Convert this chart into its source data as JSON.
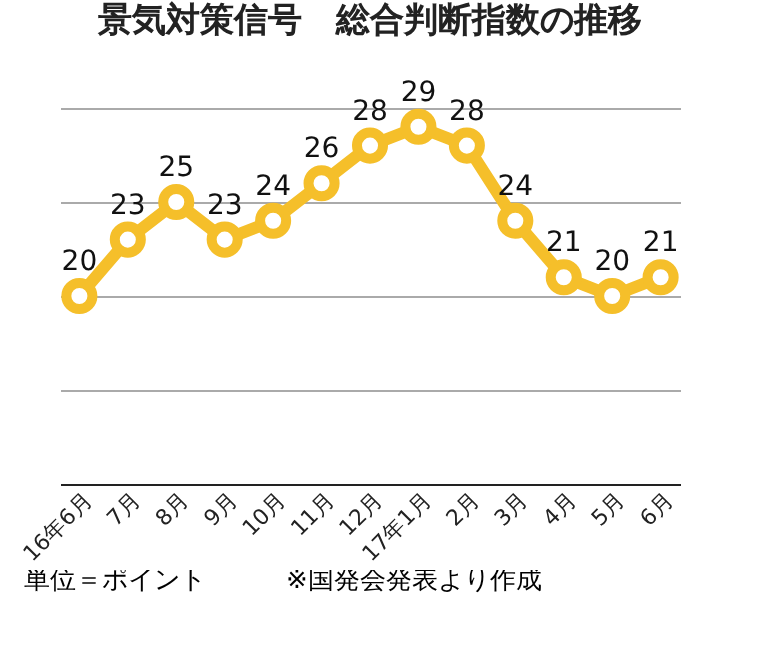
{
  "chart_data": {
    "type": "line",
    "title": "景気対策信号　総合判断指数の推移",
    "categories": [
      "16年6月",
      "7月",
      "8月",
      "9月",
      "10月",
      "11月",
      "12月",
      "17年1月",
      "2月",
      "3月",
      "4月",
      "5月",
      "6月"
    ],
    "series": [
      {
        "color": "#f5bf2a",
        "values": [
          20,
          23,
          25,
          23,
          24,
          26,
          28,
          29,
          28,
          24,
          21,
          20,
          21
        ]
      }
    ],
    "ylim": [
      10,
      30
    ],
    "yticks": [
      {
        "value": 10,
        "label": null
      },
      {
        "value": 15,
        "label": null
      },
      {
        "value": 20,
        "label": null
      },
      {
        "value": 25,
        "label": null
      },
      {
        "value": 30,
        "label": null
      }
    ],
    "grid": "y",
    "tick_labels": "x",
    "marker": "circle",
    "data_labels": true,
    "legend": false,
    "annotations": [
      "単位＝ポイント",
      "※国発会発表より作成"
    ]
  }
}
